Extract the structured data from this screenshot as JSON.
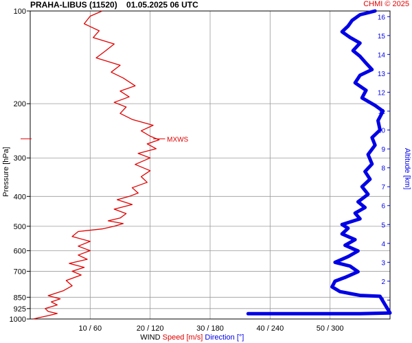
{
  "header": {
    "title": "PRAHA-LIBUS (11520)",
    "datetime": "01.05.2025 06 UTC",
    "credit": "CHMI © 2025"
  },
  "colors": {
    "speed": "#e00000",
    "direction": "#0000e6",
    "grid": "#999999",
    "text": "#000000"
  },
  "chart_data": {
    "type": "line",
    "ylabel": "Pressure [hPa]",
    "y2label": "Altitude [km]",
    "xlabel_parts": [
      "WIND",
      "Speed [m/s]",
      "Direction [°]"
    ],
    "pressure_ticks": [
      100,
      200,
      300,
      400,
      500,
      600,
      700,
      850,
      925,
      1000
    ],
    "altitude_ticks": [
      1,
      2,
      3,
      4,
      5,
      6,
      7,
      8,
      9,
      10,
      11,
      12,
      13,
      14,
      15,
      16
    ],
    "x_ticks": [
      "10 / 60",
      "20 / 120",
      "30 / 180",
      "40 / 240",
      "50 / 300"
    ],
    "speed_range": [
      0,
      60
    ],
    "direction_range": [
      0,
      360
    ],
    "pressure_range": [
      100,
      1000
    ],
    "altitude_range": [
      0,
      16.3
    ],
    "annotation": {
      "text": "MXWS",
      "pressure": 260
    },
    "series": [
      {
        "name": "Speed [m/s]",
        "axis": "pressure",
        "points": [
          [
            1000,
            0.5
          ],
          [
            990,
            1.5
          ],
          [
            975,
            3
          ],
          [
            960,
            4.5
          ],
          [
            945,
            3
          ],
          [
            925,
            2.5
          ],
          [
            900,
            4.5
          ],
          [
            880,
            3.5
          ],
          [
            860,
            5
          ],
          [
            840,
            3
          ],
          [
            810,
            5.5
          ],
          [
            780,
            7
          ],
          [
            750,
            6
          ],
          [
            720,
            8.5
          ],
          [
            700,
            7
          ],
          [
            680,
            9
          ],
          [
            660,
            6.5
          ],
          [
            640,
            9.5
          ],
          [
            620,
            8
          ],
          [
            600,
            10
          ],
          [
            580,
            8
          ],
          [
            560,
            10
          ],
          [
            540,
            7
          ],
          [
            520,
            8
          ],
          [
            510,
            12
          ],
          [
            500,
            14
          ],
          [
            490,
            15.5
          ],
          [
            480,
            13
          ],
          [
            470,
            15
          ],
          [
            455,
            16
          ],
          [
            440,
            14
          ],
          [
            425,
            17
          ],
          [
            410,
            14.5
          ],
          [
            400,
            16.5
          ],
          [
            390,
            18
          ],
          [
            375,
            17
          ],
          [
            360,
            19.5
          ],
          [
            345,
            18.5
          ],
          [
            330,
            20
          ],
          [
            315,
            17.5
          ],
          [
            300,
            20
          ],
          [
            290,
            18
          ],
          [
            280,
            21
          ],
          [
            270,
            19.5
          ],
          [
            262,
            21.5
          ],
          [
            255,
            20
          ],
          [
            245,
            18.5
          ],
          [
            235,
            20.5
          ],
          [
            225,
            17
          ],
          [
            215,
            15
          ],
          [
            205,
            16
          ],
          [
            198,
            14
          ],
          [
            190,
            16.5
          ],
          [
            182,
            15
          ],
          [
            175,
            17.5
          ],
          [
            165,
            15.5
          ],
          [
            158,
            13.5
          ],
          [
            150,
            15
          ],
          [
            142,
            11
          ],
          [
            135,
            12.5
          ],
          [
            128,
            14
          ],
          [
            122,
            10.5
          ],
          [
            116,
            11.5
          ],
          [
            110,
            9
          ],
          [
            104,
            10
          ],
          [
            100,
            12
          ]
        ]
      },
      {
        "name": "Direction [°]",
        "axis": "altitude",
        "points": [
          [
            0.28,
            218
          ],
          [
            0.28,
            330
          ],
          [
            0.32,
            360
          ],
          [
            1.2,
            350
          ],
          [
            1.25,
            330
          ],
          [
            1.45,
            310
          ],
          [
            1.7,
            302
          ],
          [
            2.0,
            305
          ],
          [
            2.2,
            315
          ],
          [
            2.5,
            328
          ],
          [
            2.8,
            320
          ],
          [
            3.0,
            305
          ],
          [
            3.3,
            318
          ],
          [
            3.6,
            328
          ],
          [
            3.9,
            315
          ],
          [
            4.2,
            325
          ],
          [
            4.5,
            312
          ],
          [
            4.8,
            318
          ],
          [
            5.0,
            312
          ],
          [
            5.3,
            330
          ],
          [
            5.6,
            325
          ],
          [
            5.9,
            335
          ],
          [
            6.2,
            328
          ],
          [
            6.6,
            338
          ],
          [
            7.0,
            332
          ],
          [
            7.4,
            340
          ],
          [
            7.8,
            335
          ],
          [
            8.2,
            342
          ],
          [
            8.7,
            338
          ],
          [
            9.2,
            345
          ],
          [
            9.6,
            342
          ],
          [
            10.0,
            350
          ],
          [
            10.5,
            348
          ],
          [
            11.0,
            353
          ],
          [
            11.3,
            345
          ],
          [
            11.7,
            332
          ],
          [
            12.1,
            336
          ],
          [
            12.5,
            325
          ],
          [
            12.9,
            330
          ],
          [
            13.2,
            342
          ],
          [
            13.6,
            335
          ],
          [
            13.9,
            330
          ],
          [
            14.2,
            323
          ],
          [
            14.6,
            330
          ],
          [
            14.9,
            320
          ],
          [
            15.2,
            312
          ],
          [
            15.5,
            318
          ],
          [
            15.8,
            322
          ],
          [
            16.1,
            330
          ],
          [
            16.3,
            345
          ]
        ]
      }
    ]
  }
}
